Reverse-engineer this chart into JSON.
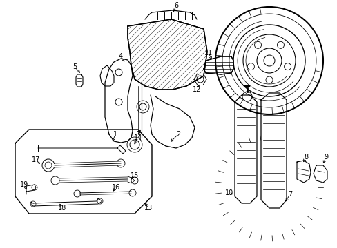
{
  "background_color": "#ffffff",
  "line_color": "#000000",
  "figsize": [
    4.89,
    3.6
  ],
  "dpi": 100,
  "xlim": [
    0,
    489
  ],
  "ylim": [
    0,
    360
  ]
}
